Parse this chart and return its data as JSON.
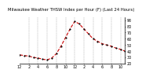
{
  "title": "Milwaukee Weather THSW Index per Hour (F) (Last 24 Hours)",
  "background_color": "#ffffff",
  "line_color": "#cc0000",
  "marker_color": "#111111",
  "grid_color": "#999999",
  "hours": [
    0,
    1,
    2,
    3,
    4,
    5,
    6,
    7,
    8,
    9,
    10,
    11,
    12,
    13,
    14,
    15,
    16,
    17,
    18,
    19,
    20,
    21,
    22,
    23
  ],
  "values": [
    34,
    33,
    32,
    30,
    29,
    27,
    26,
    29,
    36,
    48,
    62,
    76,
    88,
    84,
    76,
    68,
    60,
    56,
    52,
    50,
    48,
    45,
    43,
    40
  ],
  "ylim_min": 20,
  "ylim_max": 95,
  "ytick_values": [
    20,
    30,
    40,
    50,
    60,
    70,
    80,
    90
  ],
  "ytick_labels": [
    "20",
    "30",
    "40",
    "50",
    "60",
    "70",
    "80",
    "90"
  ],
  "xlim_min": 0,
  "xlim_max": 23,
  "xtick_positions": [
    0,
    2,
    4,
    6,
    8,
    10,
    12,
    14,
    16,
    18,
    20,
    22
  ],
  "xtick_labels": [
    "12",
    "2",
    "4",
    "6",
    "8",
    "10",
    "12",
    "2",
    "4",
    "6",
    "8",
    "10"
  ],
  "vgrid_positions": [
    2,
    4,
    6,
    8,
    10,
    12,
    14,
    16,
    18,
    20,
    22
  ],
  "marker_size": 1.2,
  "line_width": 0.8,
  "font_size": 3.5,
  "title_font_size": 3.8
}
